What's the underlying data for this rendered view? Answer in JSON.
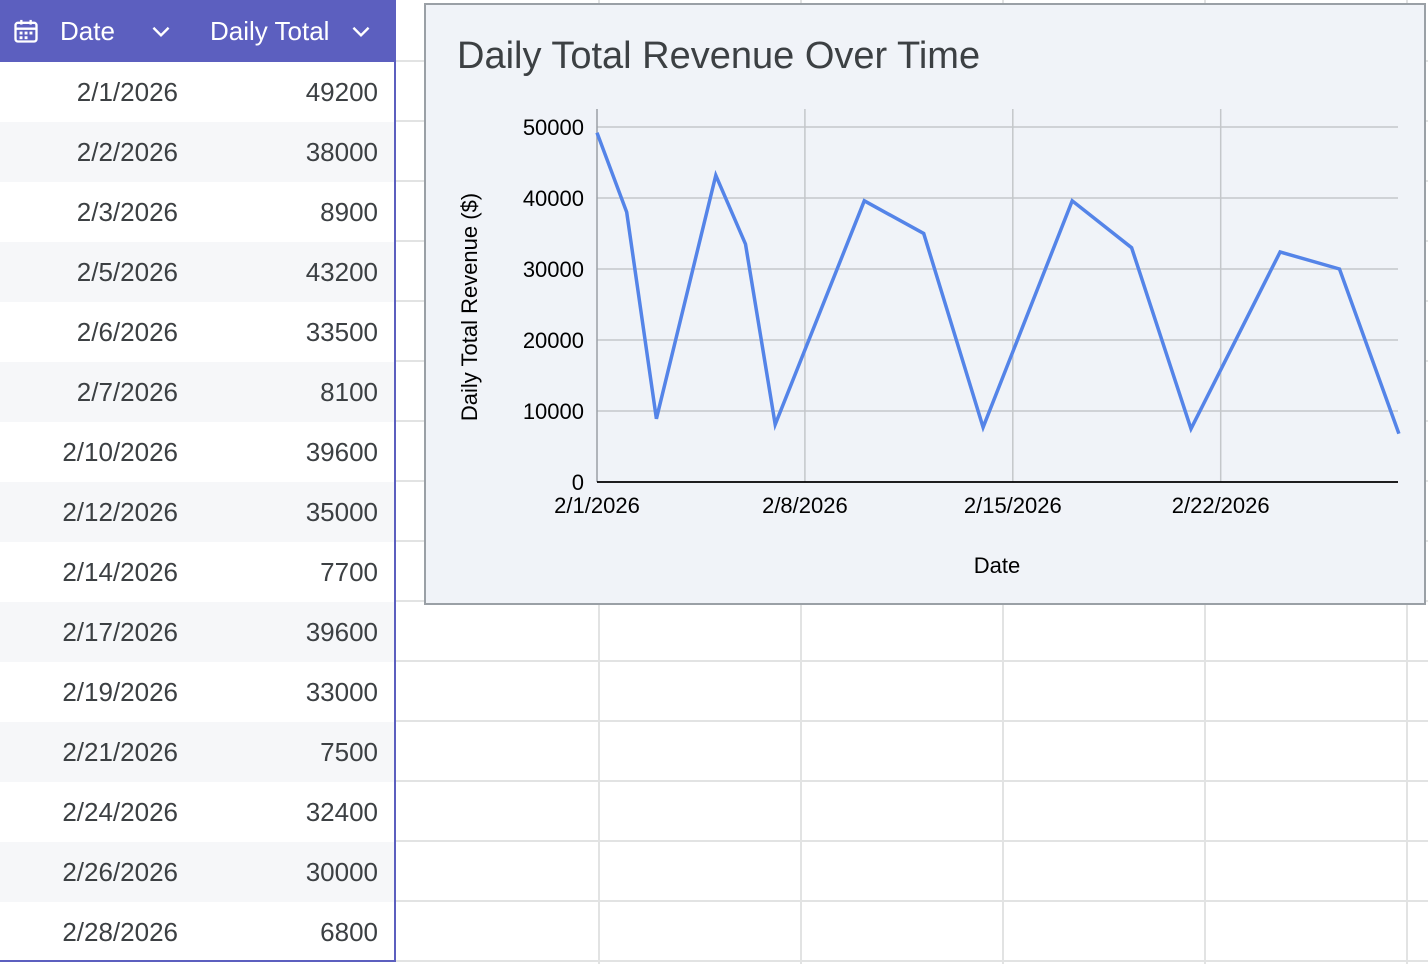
{
  "table": {
    "columns": [
      {
        "label": "Date",
        "icon": "calendar-icon"
      },
      {
        "label": "Daily Total"
      }
    ],
    "header_color": "#5c5fbf",
    "rows": [
      {
        "date": "2/1/2026",
        "total": "49200"
      },
      {
        "date": "2/2/2026",
        "total": "38000"
      },
      {
        "date": "2/3/2026",
        "total": "8900"
      },
      {
        "date": "2/5/2026",
        "total": "43200"
      },
      {
        "date": "2/6/2026",
        "total": "33500"
      },
      {
        "date": "2/7/2026",
        "total": "8100"
      },
      {
        "date": "2/10/2026",
        "total": "39600"
      },
      {
        "date": "2/12/2026",
        "total": "35000"
      },
      {
        "date": "2/14/2026",
        "total": "7700"
      },
      {
        "date": "2/17/2026",
        "total": "39600"
      },
      {
        "date": "2/19/2026",
        "total": "33000"
      },
      {
        "date": "2/21/2026",
        "total": "7500"
      },
      {
        "date": "2/24/2026",
        "total": "32400"
      },
      {
        "date": "2/26/2026",
        "total": "30000"
      },
      {
        "date": "2/28/2026",
        "total": "6800"
      }
    ]
  },
  "chart_data": {
    "type": "line",
    "title": "Daily Total Revenue Over Time",
    "xlabel": "Date",
    "ylabel": "Daily Total Revenue ($)",
    "ylim": [
      0,
      50000
    ],
    "xlim": [
      "2/1/2026",
      "2/28/2026"
    ],
    "yticks": [
      "0",
      "10000",
      "20000",
      "30000",
      "40000",
      "50000"
    ],
    "xticks": [
      "2/1/2026",
      "2/8/2026",
      "2/15/2026",
      "2/22/2026"
    ],
    "grid": true,
    "line_color": "#5484e8",
    "x": [
      "2/1/2026",
      "2/2/2026",
      "2/3/2026",
      "2/5/2026",
      "2/6/2026",
      "2/7/2026",
      "2/10/2026",
      "2/12/2026",
      "2/14/2026",
      "2/17/2026",
      "2/19/2026",
      "2/21/2026",
      "2/24/2026",
      "2/26/2026",
      "2/28/2026"
    ],
    "series": [
      {
        "values": [
          49200,
          38000,
          8900,
          43200,
          33500,
          8100,
          39600,
          35000,
          7700,
          39600,
          33000,
          7500,
          32400,
          30000,
          6800
        ]
      }
    ]
  }
}
